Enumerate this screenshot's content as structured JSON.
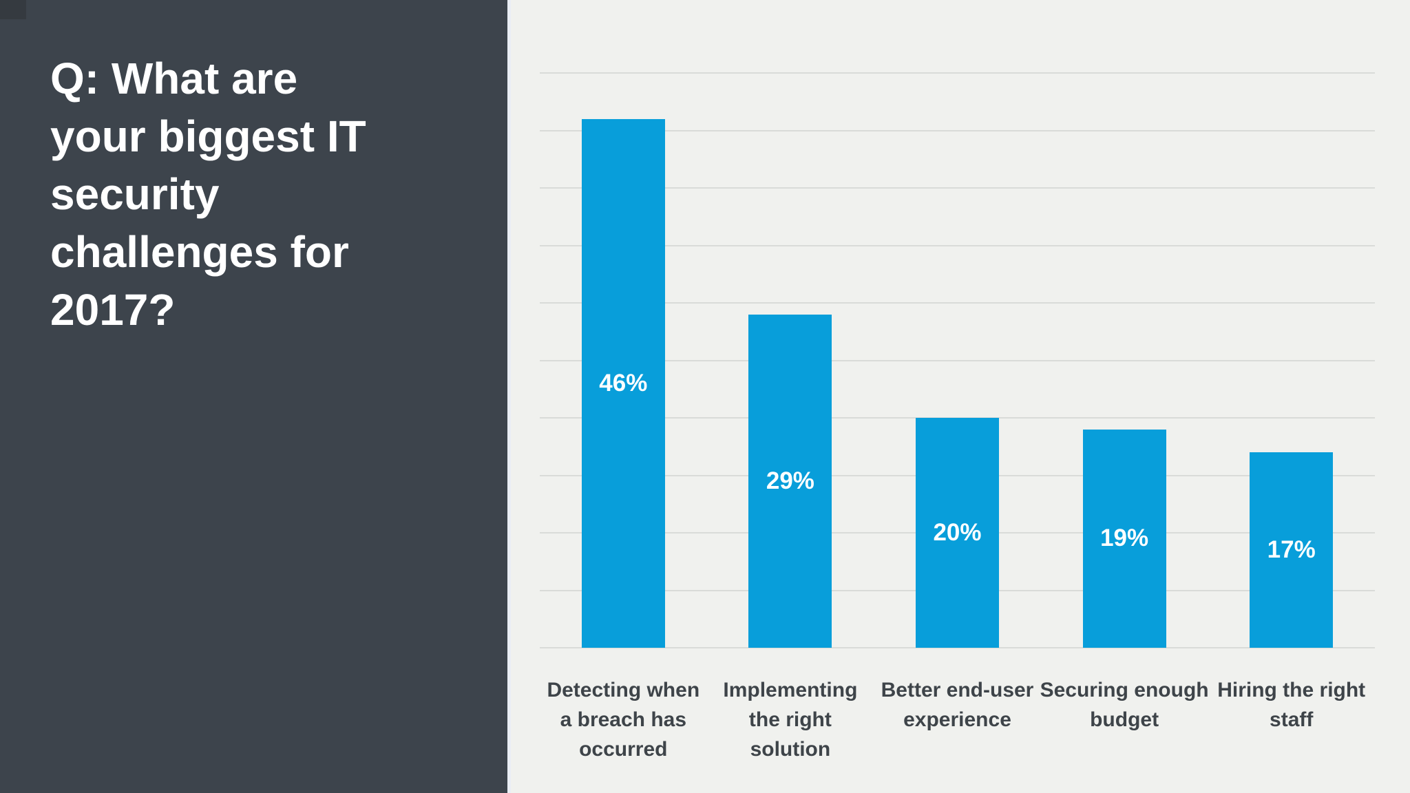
{
  "panel": {
    "question": "Q: What are your biggest IT security challenges for 2017?"
  },
  "chart_data": {
    "type": "bar",
    "title": "",
    "xlabel": "",
    "ylabel": "",
    "categories": [
      "Detecting when a breach has occurred",
      "Implementing the right solution",
      "Better end-user experience",
      "Securing enough budget",
      "Hiring the right staff"
    ],
    "category_lines": [
      [
        "Detecting when",
        "a breach has",
        "occurred"
      ],
      [
        "Implementing",
        "the right",
        "solution"
      ],
      [
        "Better end-user",
        "experience"
      ],
      [
        "Securing enough",
        "budget"
      ],
      [
        "Hiring the right",
        "staff"
      ]
    ],
    "values": [
      46,
      29,
      20,
      19,
      17
    ],
    "value_labels": [
      "46%",
      "29%",
      "20%",
      "19%",
      "17%"
    ],
    "ylim": [
      0,
      50
    ],
    "grid_step": 5,
    "grid": "on",
    "legend": "none",
    "bar_color": "#089eda",
    "value_label_color": "#ffffff"
  },
  "colors": {
    "panel-bg": "#3d444c",
    "panel-corner": "#353a40",
    "divider": "#eaeef5",
    "chart-bg": "#f0f1ee",
    "gridline": "#d9dbd8",
    "bar-color": "#089eda",
    "label-color": "#3e4449"
  }
}
